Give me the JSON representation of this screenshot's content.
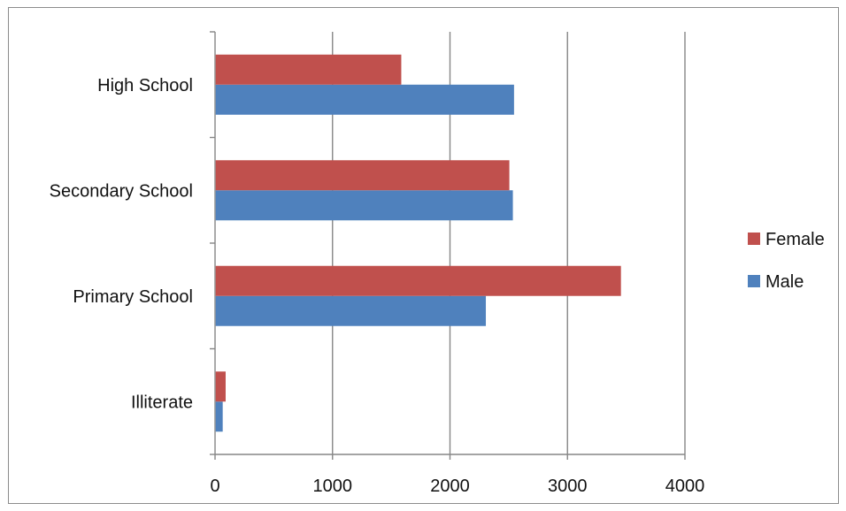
{
  "chart_data": {
    "type": "bar",
    "orientation": "horizontal",
    "title": "",
    "xlabel": "",
    "ylabel": "",
    "categories": [
      "Illiterate",
      "Primary School",
      "Secondary School",
      "High School"
    ],
    "series": [
      {
        "name": "Male",
        "color": "#4f81bd",
        "values": [
          60,
          2300,
          2530,
          2540
        ]
      },
      {
        "name": "Female",
        "color": "#c0504d",
        "values": [
          85,
          3450,
          2500,
          1580
        ]
      }
    ],
    "xlim": [
      0,
      4000
    ],
    "x_ticks": [
      "0",
      "1000",
      "2000",
      "3000",
      "4000"
    ],
    "grid": "vertical",
    "legend": {
      "position": "right",
      "order": [
        "Female",
        "Male"
      ]
    }
  }
}
